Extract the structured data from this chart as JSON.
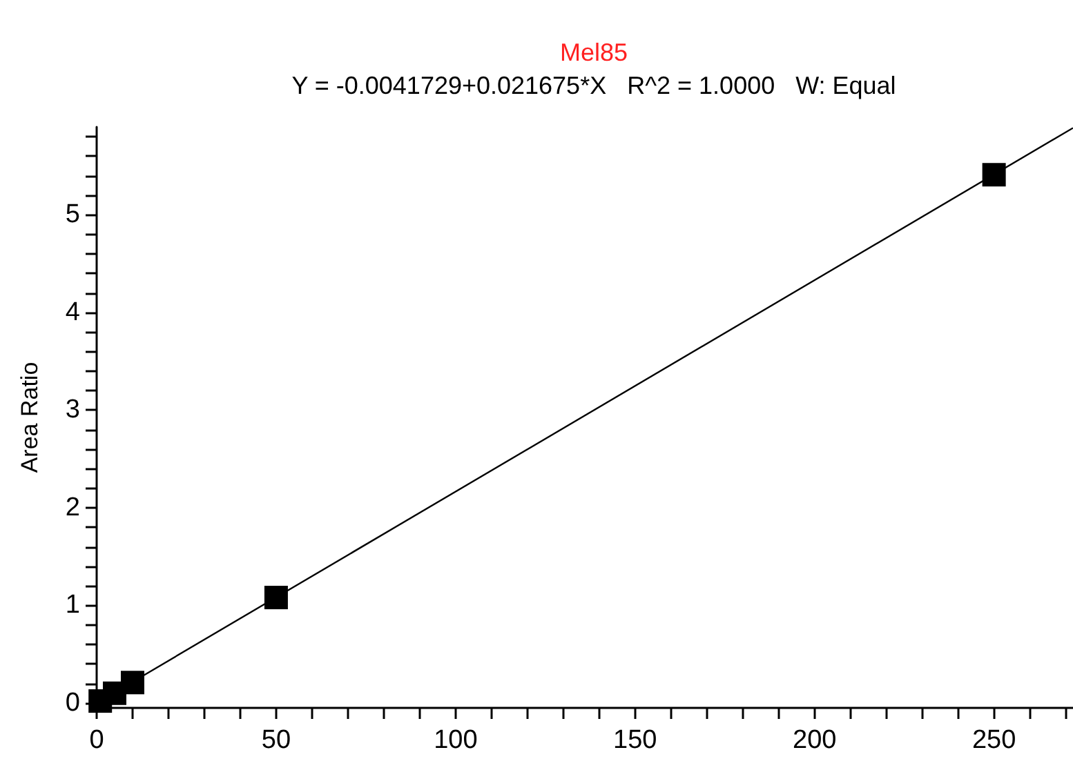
{
  "chart_data": {
    "type": "scatter",
    "title": "Mel85",
    "subtitle": "Y = -0.0041729+0.021675*X   R^2 = 1.0000   W: Equal",
    "ylabel": "Area Ratio",
    "x": [
      1,
      5,
      10,
      50,
      250
    ],
    "series": [
      {
        "color": "#000000",
        "marker": "square",
        "values": [
          0.02,
          0.1,
          0.21,
          1.08,
          5.41
        ]
      },
      {
        "type": "line",
        "color": "#000000",
        "marker": "none",
        "x": [
          0,
          272
        ],
        "values": [
          0,
          5.89
        ]
      }
    ],
    "xlim": [
      0,
      272
    ],
    "ylim": [
      -0.05,
      5.9
    ],
    "xticks": [
      0,
      {
        "value": 10,
        "label": null
      },
      {
        "value": 20,
        "label": null
      },
      {
        "value": 30,
        "label": null
      },
      {
        "value": 40,
        "label": null
      },
      50,
      {
        "value": 60,
        "label": null
      },
      {
        "value": 70,
        "label": null
      },
      {
        "value": 80,
        "label": null
      },
      {
        "value": 90,
        "label": null
      },
      100,
      {
        "value": 110,
        "label": null
      },
      {
        "value": 120,
        "label": null
      },
      {
        "value": 130,
        "label": null
      },
      {
        "value": 140,
        "label": null
      },
      150,
      {
        "value": 160,
        "label": null
      },
      {
        "value": 170,
        "label": null
      },
      {
        "value": 180,
        "label": null
      },
      {
        "value": 190,
        "label": null
      },
      200,
      {
        "value": 210,
        "label": null
      },
      {
        "value": 220,
        "label": null
      },
      {
        "value": 230,
        "label": null
      },
      {
        "value": 240,
        "label": null
      },
      250,
      {
        "value": 260,
        "label": null
      },
      {
        "value": 270,
        "label": null
      }
    ],
    "yticks": [
      0,
      {
        "value": 0.2,
        "label": null
      },
      {
        "value": 0.4,
        "label": null
      },
      {
        "value": 0.6,
        "label": null
      },
      {
        "value": 0.8,
        "label": null
      },
      1,
      {
        "value": 1.2,
        "label": null
      },
      {
        "value": 1.4,
        "label": null
      },
      {
        "value": 1.6,
        "label": null
      },
      {
        "value": 1.8,
        "label": null
      },
      2,
      {
        "value": 2.2,
        "label": null
      },
      {
        "value": 2.4,
        "label": null
      },
      {
        "value": 2.6,
        "label": null
      },
      {
        "value": 2.8,
        "label": null
      },
      3,
      {
        "value": 3.2,
        "label": null
      },
      {
        "value": 3.4,
        "label": null
      },
      {
        "value": 3.6,
        "label": null
      },
      {
        "value": 3.8,
        "label": null
      },
      4,
      {
        "value": 4.2,
        "label": null
      },
      {
        "value": 4.4,
        "label": null
      },
      {
        "value": 4.6,
        "label": null
      },
      {
        "value": 4.8,
        "label": null
      },
      5,
      {
        "value": 5.2,
        "label": null
      },
      {
        "value": 5.4,
        "label": null
      },
      {
        "value": 5.6,
        "label": null
      },
      {
        "value": 5.8,
        "label": null
      }
    ],
    "grid": false
  }
}
